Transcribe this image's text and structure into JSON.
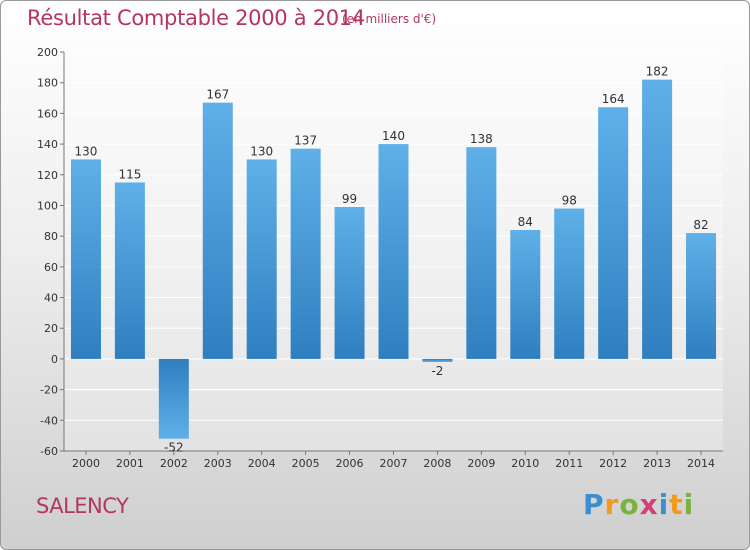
{
  "title": "Résultat Comptable 2000 à 2014",
  "subtitle": "(en milliers d'€)",
  "place": "SALENCY",
  "brand": {
    "letters": [
      "P",
      "r",
      "o",
      "x",
      "i",
      "t",
      "i"
    ],
    "colors": [
      "#3a8fd0",
      "#f29a1c",
      "#7ab33b",
      "#d43f7a",
      "#3a8fd0",
      "#f29a1c",
      "#7ab33b"
    ]
  },
  "colors": {
    "bar_top": "#5fb0e8",
    "bar_bottom": "#2f7fc0",
    "title": "#b4365f"
  },
  "chart_data": {
    "type": "bar",
    "categories": [
      "2000",
      "2001",
      "2002",
      "2003",
      "2004",
      "2005",
      "2006",
      "2007",
      "2008",
      "2009",
      "2010",
      "2011",
      "2012",
      "2013",
      "2014"
    ],
    "values": [
      130,
      115,
      -52,
      167,
      130,
      137,
      99,
      140,
      -2,
      138,
      84,
      98,
      164,
      182,
      82
    ],
    "ylim": [
      -60,
      200
    ],
    "yticks": [
      -60,
      -40,
      -20,
      0,
      20,
      40,
      60,
      80,
      100,
      120,
      140,
      160,
      180,
      200
    ],
    "grid": true
  }
}
